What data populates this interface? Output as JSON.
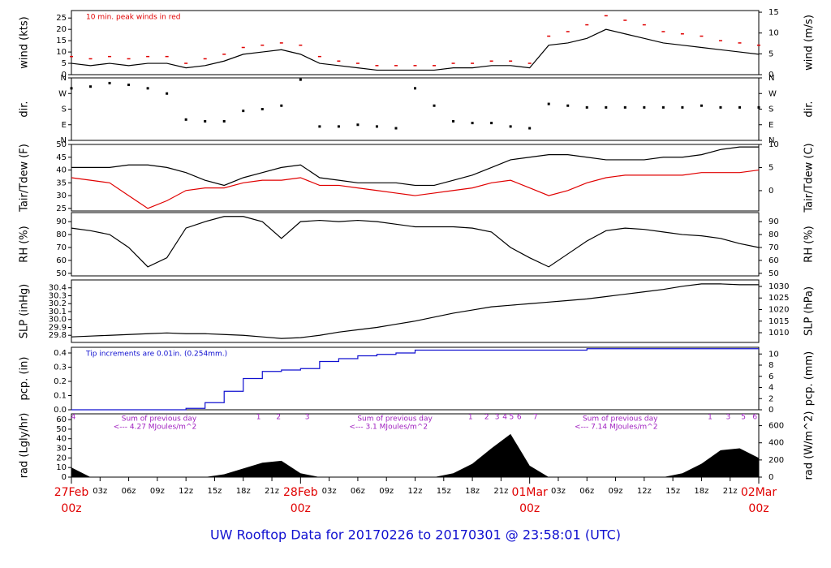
{
  "caption": "UW Rooftop Data for 20170226  to  20170301 @ 23:58:01  (UTC)",
  "time_axis": {
    "xlim": [
      0,
      72
    ],
    "xticks": [
      {
        "value": 3,
        "label": "03z"
      },
      {
        "value": 6,
        "label": "06z"
      },
      {
        "value": 9,
        "label": "09z"
      },
      {
        "value": 12,
        "label": "12z"
      },
      {
        "value": 15,
        "label": "15z"
      },
      {
        "value": 18,
        "label": "18z"
      },
      {
        "value": 21,
        "label": "21z"
      },
      {
        "value": 27,
        "label": "03z"
      },
      {
        "value": 30,
        "label": "06z"
      },
      {
        "value": 33,
        "label": "09z"
      },
      {
        "value": 36,
        "label": "12z"
      },
      {
        "value": 39,
        "label": "15z"
      },
      {
        "value": 42,
        "label": "18z"
      },
      {
        "value": 45,
        "label": "21z"
      },
      {
        "value": 51,
        "label": "03z"
      },
      {
        "value": 54,
        "label": "06z"
      },
      {
        "value": 57,
        "label": "09z"
      },
      {
        "value": 60,
        "label": "12z"
      },
      {
        "value": 63,
        "label": "15z"
      },
      {
        "value": 66,
        "label": "18z"
      },
      {
        "value": 69,
        "label": "21z"
      }
    ],
    "day_ticks": [
      {
        "value": 0,
        "label": "27Feb",
        "hour": "00z"
      },
      {
        "value": 24,
        "label": "28Feb",
        "hour": "00z"
      },
      {
        "value": 48,
        "label": "01Mar",
        "hour": "00z"
      },
      {
        "value": 72,
        "label": "02Mar",
        "hour": "00z"
      }
    ]
  },
  "chart_data": [
    {
      "type": "line",
      "ylabel": "wind (kts)",
      "y2label": "wind (m/s)",
      "ylim": [
        0,
        28.3
      ],
      "yticks": [
        0,
        5,
        10,
        15,
        20,
        25
      ],
      "y2lim": [
        0,
        15.4
      ],
      "y2ticks": [
        0,
        5,
        10,
        15
      ],
      "note": "10 min. peak winds in red",
      "note_color": "#e00000",
      "x": [
        0,
        2,
        4,
        6,
        8,
        10,
        12,
        14,
        16,
        18,
        20,
        22,
        24,
        26,
        28,
        30,
        32,
        34,
        36,
        38,
        40,
        42,
        44,
        46,
        48,
        50,
        52,
        54,
        56,
        58,
        60,
        62,
        64,
        66,
        68,
        70,
        72
      ],
      "series": [
        {
          "color": "#000000",
          "mode": "line",
          "values": [
            5,
            4,
            5,
            4,
            5,
            5,
            3,
            4,
            6,
            9,
            10,
            11,
            9,
            5,
            4,
            3,
            2,
            2,
            2,
            2,
            3,
            3,
            4,
            4,
            3,
            13,
            14,
            16,
            20,
            18,
            16,
            14,
            13,
            12,
            11,
            10,
            9
          ]
        },
        {
          "color": "#e00000",
          "mode": "dash",
          "values": [
            8,
            7,
            8,
            7,
            8,
            8,
            5,
            7,
            9,
            12,
            13,
            14,
            13,
            8,
            6,
            5,
            4,
            4,
            4,
            4,
            5,
            5,
            6,
            6,
            5,
            17,
            19,
            22,
            26,
            24,
            22,
            19,
            18,
            17,
            15,
            14,
            13
          ]
        }
      ]
    },
    {
      "type": "scatter",
      "ylabel": "dir.",
      "y2label": "dir.",
      "ylim": [
        0,
        360
      ],
      "yticks": [
        {
          "value": 0,
          "label": "N"
        },
        {
          "value": 90,
          "label": "E"
        },
        {
          "value": 180,
          "label": "S"
        },
        {
          "value": 270,
          "label": "W"
        },
        {
          "value": 360,
          "label": "N"
        }
      ],
      "y2lim": [
        0,
        360
      ],
      "y2ticks": [
        {
          "value": 0,
          "label": "N"
        },
        {
          "value": 90,
          "label": "E"
        },
        {
          "value": 180,
          "label": "S"
        },
        {
          "value": 270,
          "label": "W"
        },
        {
          "value": 360,
          "label": "N"
        }
      ],
      "x": [
        0,
        2,
        4,
        6,
        8,
        10,
        12,
        14,
        16,
        18,
        20,
        22,
        24,
        26,
        28,
        30,
        32,
        34,
        36,
        38,
        40,
        42,
        44,
        46,
        48,
        50,
        52,
        54,
        56,
        58,
        60,
        62,
        64,
        66,
        68,
        70,
        72
      ],
      "series": [
        {
          "color": "#000000",
          "mode": "points",
          "values": [
            300,
            310,
            330,
            320,
            300,
            270,
            120,
            110,
            110,
            170,
            180,
            200,
            350,
            80,
            80,
            90,
            80,
            70,
            300,
            200,
            110,
            100,
            100,
            80,
            70,
            210,
            200,
            190,
            190,
            190,
            190,
            190,
            190,
            200,
            190,
            190,
            190
          ]
        }
      ]
    },
    {
      "type": "line",
      "ylabel": "Tair/Tdew (F)",
      "y2label": "Tair/Tdew (C)",
      "ylim": [
        24,
        50
      ],
      "yticks": [
        25,
        30,
        35,
        40,
        45,
        50
      ],
      "y2lim": [
        -4.4,
        10
      ],
      "y2ticks": [
        0,
        5,
        10
      ],
      "x": [
        0,
        2,
        4,
        6,
        8,
        10,
        12,
        14,
        16,
        18,
        20,
        22,
        24,
        26,
        28,
        30,
        32,
        34,
        36,
        38,
        40,
        42,
        44,
        46,
        48,
        50,
        52,
        54,
        56,
        58,
        60,
        62,
        64,
        66,
        68,
        70,
        72
      ],
      "series": [
        {
          "color": "#000000",
          "mode": "line",
          "values": [
            41,
            41,
            41,
            42,
            42,
            41,
            39,
            36,
            34,
            37,
            39,
            41,
            42,
            37,
            36,
            35,
            35,
            35,
            34,
            34,
            36,
            38,
            41,
            44,
            45,
            46,
            46,
            45,
            44,
            44,
            44,
            45,
            45,
            46,
            48,
            49,
            49
          ]
        },
        {
          "color": "#e00000",
          "mode": "line",
          "values": [
            37,
            36,
            35,
            30,
            25,
            28,
            32,
            33,
            33,
            35,
            36,
            36,
            37,
            34,
            34,
            33,
            32,
            31,
            30,
            31,
            32,
            33,
            35,
            36,
            33,
            30,
            32,
            35,
            37,
            38,
            38,
            38,
            38,
            39,
            39,
            39,
            40
          ]
        }
      ]
    },
    {
      "type": "line",
      "ylabel": "RH (%)",
      "y2label": "RH (%)",
      "ylim": [
        48,
        97
      ],
      "yticks": [
        50,
        60,
        70,
        80,
        90
      ],
      "y2lim": [
        48,
        97
      ],
      "y2ticks": [
        50,
        60,
        70,
        80,
        90
      ],
      "x": [
        0,
        2,
        4,
        6,
        8,
        10,
        12,
        14,
        16,
        18,
        20,
        22,
        24,
        26,
        28,
        30,
        32,
        34,
        36,
        38,
        40,
        42,
        44,
        46,
        48,
        50,
        52,
        54,
        56,
        58,
        60,
        62,
        64,
        66,
        68,
        70,
        72
      ],
      "series": [
        {
          "color": "#000000",
          "mode": "line",
          "values": [
            85,
            83,
            80,
            70,
            55,
            62,
            85,
            90,
            94,
            94,
            90,
            77,
            90,
            91,
            90,
            91,
            90,
            88,
            86,
            86,
            86,
            85,
            82,
            70,
            62,
            55,
            65,
            75,
            83,
            85,
            84,
            82,
            80,
            79,
            77,
            73,
            70
          ]
        }
      ]
    },
    {
      "type": "line",
      "ylabel": "SLP (inHg)",
      "y2label": "SLP (hPa)",
      "ylim": [
        29.71,
        30.5
      ],
      "yticks": [
        29.8,
        {
          "value": 30,
          "label": "30.0"
        },
        30.2,
        30.4,
        29.9,
        30.1,
        30.3
      ],
      "y2lim": [
        1005.8,
        1032.8
      ],
      "y2ticks": [
        1010,
        1015,
        1020,
        1025,
        1030
      ],
      "x": [
        0,
        2,
        4,
        6,
        8,
        10,
        12,
        14,
        16,
        18,
        20,
        22,
        24,
        26,
        28,
        30,
        32,
        34,
        36,
        38,
        40,
        42,
        44,
        46,
        48,
        50,
        52,
        54,
        56,
        58,
        60,
        62,
        64,
        66,
        68,
        70,
        72
      ],
      "series": [
        {
          "color": "#000000",
          "mode": "line",
          "values": [
            29.78,
            29.79,
            29.8,
            29.81,
            29.82,
            29.83,
            29.82,
            29.82,
            29.81,
            29.8,
            29.78,
            29.76,
            29.77,
            29.8,
            29.84,
            29.87,
            29.9,
            29.94,
            29.98,
            30.03,
            30.08,
            30.12,
            30.16,
            30.18,
            30.2,
            30.22,
            30.24,
            30.26,
            30.29,
            30.32,
            30.35,
            30.38,
            30.42,
            30.45,
            30.45,
            30.44,
            30.44
          ]
        }
      ]
    },
    {
      "type": "line",
      "ylabel": "pcp. (in)",
      "y2label": "pcp. (mm)",
      "ylim": [
        0,
        0.44
      ],
      "yticks": [
        {
          "value": 0,
          "label": "0.0"
        },
        0.1,
        0.2,
        0.3,
        0.4
      ],
      "y2lim": [
        0,
        11.2
      ],
      "y2ticks": [
        0,
        2,
        4,
        6,
        8,
        10
      ],
      "note": "Tip increments are 0.01in. (0.254mm.)",
      "note_color": "#1010d0",
      "x": [
        0,
        2,
        4,
        6,
        8,
        10,
        12,
        14,
        16,
        18,
        20,
        22,
        24,
        26,
        28,
        30,
        32,
        34,
        36,
        38,
        40,
        42,
        44,
        46,
        48,
        50,
        52,
        54,
        56,
        58,
        60,
        62,
        64,
        66,
        68,
        70,
        72
      ],
      "series": [
        {
          "color": "#1010d0",
          "mode": "step",
          "values": [
            0,
            0,
            0,
            0,
            0,
            0,
            0.01,
            0.05,
            0.13,
            0.22,
            0.27,
            0.28,
            0.29,
            0.34,
            0.36,
            0.38,
            0.39,
            0.4,
            0.42,
            0.42,
            0.42,
            0.42,
            0.42,
            0.42,
            0.42,
            0.42,
            0.42,
            0.43,
            0.43,
            0.43,
            0.43,
            0.43,
            0.43,
            0.43,
            0.43,
            0.43,
            0.43
          ]
        }
      ]
    },
    {
      "type": "area",
      "ylabel": "rad (Lgly/hr)",
      "y2label": "rad (W/m^2)",
      "ylim": [
        0,
        66
      ],
      "yticks": [
        0,
        10,
        20,
        30,
        40,
        50,
        60
      ],
      "y2lim": [
        0,
        738
      ],
      "y2ticks": [
        0,
        200,
        400,
        600
      ],
      "sums": [
        {
          "line1": "Sum of previous day",
          "line2": "<--- 4.27 MJoules/m^2",
          "x": 4.4
        },
        {
          "line1": "Sum of previous day",
          "line2": "<--- 3.1 MJoules/m^2",
          "x": 29.1
        },
        {
          "line1": "Sum of previous day",
          "line2": "<--- 7.14 MJoules/m^2",
          "x": 52.7
        }
      ],
      "hour_marks": [
        {
          "label": "4",
          "x": 0.2
        },
        {
          "label": "1",
          "x": 19.6
        },
        {
          "label": "2",
          "x": 21.7
        },
        {
          "label": "3",
          "x": 24.7
        },
        {
          "label": "1",
          "x": 41.8
        },
        {
          "label": "2",
          "x": 43.5
        },
        {
          "label": "3",
          "x": 44.6
        },
        {
          "label": "4",
          "x": 45.4
        },
        {
          "label": "5",
          "x": 46.1
        },
        {
          "label": "6",
          "x": 46.9
        },
        {
          "label": "7",
          "x": 48.6
        },
        {
          "label": "1",
          "x": 66.9
        },
        {
          "label": "3",
          "x": 68.8
        },
        {
          "label": "5",
          "x": 70.4
        },
        {
          "label": "6",
          "x": 71.6
        }
      ],
      "x": [
        0,
        2,
        4,
        6,
        8,
        10,
        12,
        14,
        16,
        18,
        20,
        22,
        24,
        26,
        28,
        30,
        32,
        34,
        36,
        38,
        40,
        42,
        44,
        46,
        48,
        50,
        52,
        54,
        56,
        58,
        60,
        62,
        64,
        66,
        68,
        70,
        72
      ],
      "series": [
        {
          "color": "#000000",
          "mode": "area",
          "values": [
            10,
            0,
            0,
            0,
            0,
            0,
            0,
            0,
            3,
            9,
            15,
            17,
            4,
            0,
            0,
            0,
            0,
            0,
            0,
            0,
            4,
            14,
            30,
            45,
            12,
            0,
            0,
            0,
            0,
            0,
            0,
            0,
            4,
            14,
            28,
            30,
            20
          ]
        }
      ]
    }
  ]
}
